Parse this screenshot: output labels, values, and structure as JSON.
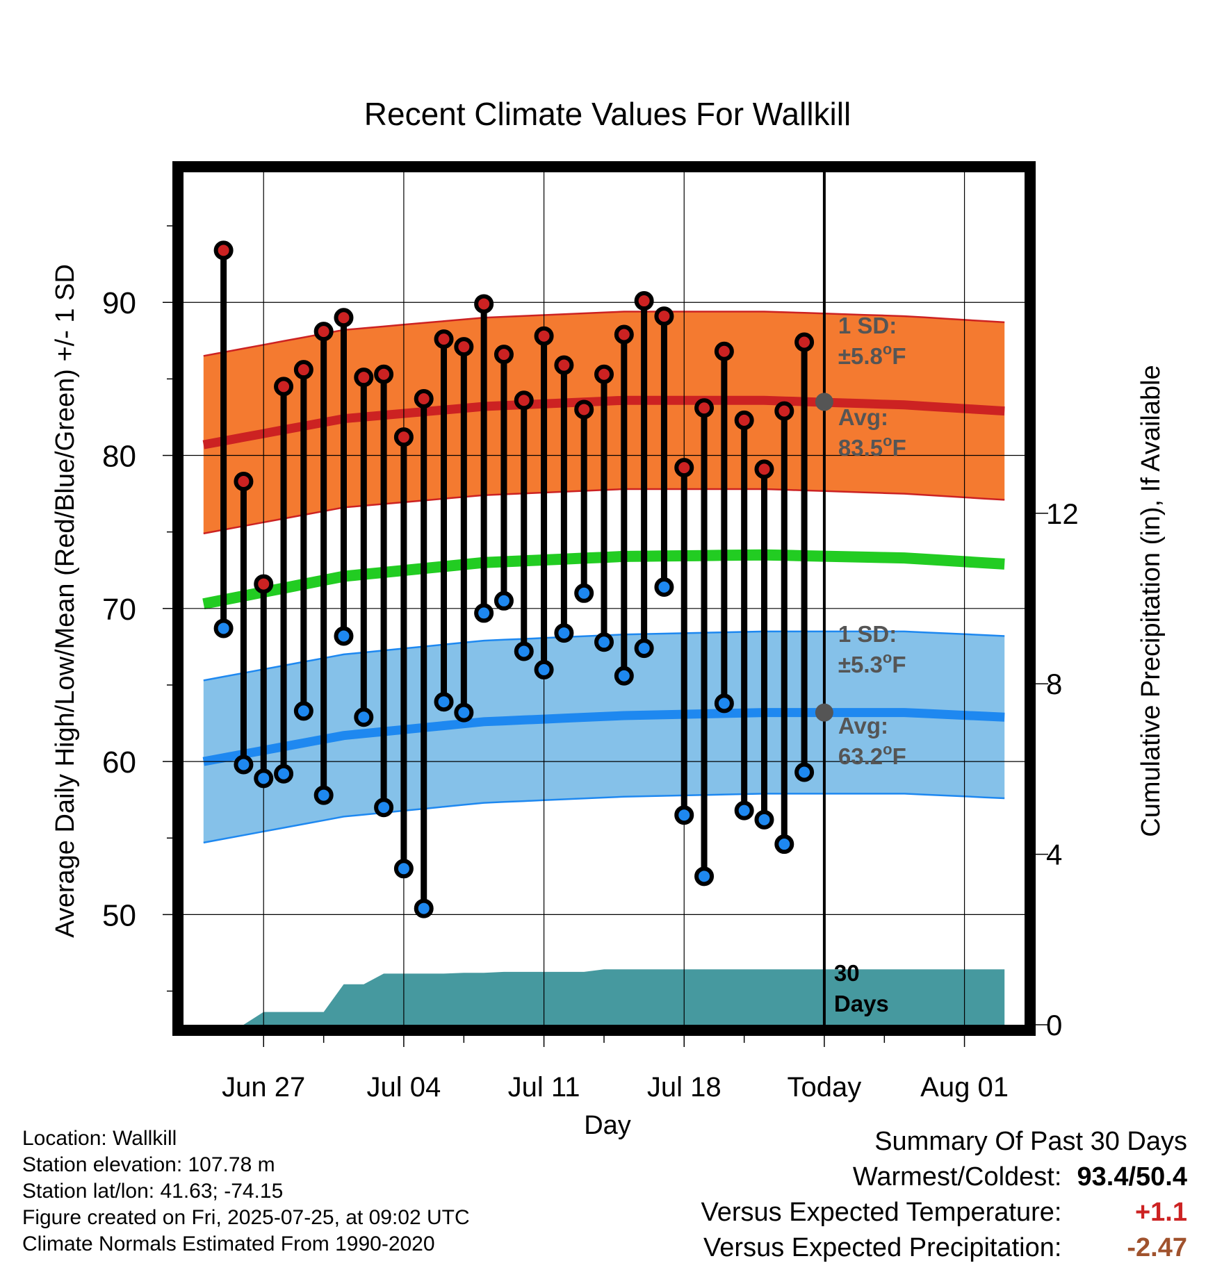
{
  "colors": {
    "high": "#cc2222",
    "high_band": "#f47a30",
    "low": "#1e88f0",
    "low_band": "#85c1e9",
    "mean": "#22cc22",
    "precip": "#46999f",
    "text_gray": "#555555",
    "temp_diff": "#cc2222",
    "precip_diff": "#a0522d"
  },
  "chart_data": {
    "type": "line",
    "title": "Recent Climate Values For Wallkill",
    "xlabel": "Day",
    "ylabel": "Average Daily High/Low/Mean (Red/Blue/Green) +/- 1 SD",
    "y2label": "Cumulative Precipitation (in), If Available",
    "xlim": [
      "2025-06-23",
      "2025-08-04"
    ],
    "ylim": [
      42.8,
      98.5
    ],
    "y2lim": [
      0,
      20
    ],
    "xticks": [
      {
        "date": "2025-06-27",
        "label": "Jun 27"
      },
      {
        "date": "2025-07-04",
        "label": "Jul 04"
      },
      {
        "date": "2025-07-11",
        "label": "Jul 11"
      },
      {
        "date": "2025-07-18",
        "label": "Jul 18"
      },
      {
        "date": "2025-07-25",
        "label": "Today"
      },
      {
        "date": "2025-08-01",
        "label": "Aug 01"
      }
    ],
    "yticks": [
      50,
      60,
      70,
      80,
      90
    ],
    "y2ticks": [
      0,
      4,
      8,
      12
    ],
    "today": "2025-07-25",
    "grid": true,
    "series": [
      {
        "key": "high",
        "dates": [
          "2025-06-25",
          "2025-06-26",
          "2025-06-27",
          "2025-06-28",
          "2025-06-29",
          "2025-06-30",
          "2025-07-01",
          "2025-07-02",
          "2025-07-03",
          "2025-07-04",
          "2025-07-05",
          "2025-07-06",
          "2025-07-07",
          "2025-07-08",
          "2025-07-09",
          "2025-07-10",
          "2025-07-11",
          "2025-07-12",
          "2025-07-13",
          "2025-07-14",
          "2025-07-15",
          "2025-07-16",
          "2025-07-17",
          "2025-07-18",
          "2025-07-19",
          "2025-07-20",
          "2025-07-21",
          "2025-07-22",
          "2025-07-23",
          "2025-07-24"
        ],
        "values": [
          93.4,
          78.3,
          71.6,
          84.5,
          85.6,
          88.1,
          89.0,
          85.1,
          85.3,
          81.2,
          83.7,
          87.6,
          87.1,
          89.9,
          86.6,
          83.6,
          87.8,
          85.9,
          83.0,
          85.3,
          87.9,
          90.1,
          89.1,
          79.2,
          83.1,
          86.8,
          82.3,
          79.1,
          82.9,
          87.4
        ]
      },
      {
        "key": "low",
        "dates": [
          "2025-06-25",
          "2025-06-26",
          "2025-06-27",
          "2025-06-28",
          "2025-06-29",
          "2025-06-30",
          "2025-07-01",
          "2025-07-02",
          "2025-07-03",
          "2025-07-04",
          "2025-07-05",
          "2025-07-06",
          "2025-07-07",
          "2025-07-08",
          "2025-07-09",
          "2025-07-10",
          "2025-07-11",
          "2025-07-12",
          "2025-07-13",
          "2025-07-14",
          "2025-07-15",
          "2025-07-16",
          "2025-07-17",
          "2025-07-18",
          "2025-07-19",
          "2025-07-20",
          "2025-07-21",
          "2025-07-22",
          "2025-07-23",
          "2025-07-24"
        ],
        "values": [
          68.7,
          59.8,
          58.9,
          59.2,
          63.3,
          57.8,
          68.2,
          62.9,
          57.0,
          53.0,
          50.4,
          63.9,
          63.2,
          69.7,
          70.5,
          67.2,
          66.0,
          68.4,
          71.0,
          67.8,
          65.6,
          67.4,
          71.4,
          56.5,
          52.5,
          63.8,
          56.8,
          56.2,
          54.6,
          59.3
        ]
      },
      {
        "key": "normal_high",
        "dates": [
          "2025-06-24",
          "2025-07-01",
          "2025-07-08",
          "2025-07-15",
          "2025-07-22",
          "2025-07-29",
          "2025-08-03"
        ],
        "values": [
          80.7,
          82.4,
          83.2,
          83.6,
          83.6,
          83.3,
          82.9
        ]
      },
      {
        "key": "normal_low",
        "dates": [
          "2025-06-24",
          "2025-07-01",
          "2025-07-08",
          "2025-07-15",
          "2025-07-22",
          "2025-07-29",
          "2025-08-03"
        ],
        "values": [
          60.0,
          61.7,
          62.6,
          63.0,
          63.2,
          63.2,
          62.9
        ]
      },
      {
        "key": "normal_mean",
        "dates": [
          "2025-06-24",
          "2025-07-01",
          "2025-07-08",
          "2025-07-15",
          "2025-07-22",
          "2025-07-29",
          "2025-08-03"
        ],
        "values": [
          70.3,
          72.1,
          73.0,
          73.4,
          73.5,
          73.3,
          72.9
        ]
      },
      {
        "key": "precip_cumulative",
        "dates": [
          "2025-06-24",
          "2025-06-25",
          "2025-06-26",
          "2025-06-27",
          "2025-06-28",
          "2025-06-29",
          "2025-06-30",
          "2025-07-01",
          "2025-07-02",
          "2025-07-03",
          "2025-07-04",
          "2025-07-05",
          "2025-07-06",
          "2025-07-07",
          "2025-07-08",
          "2025-07-09",
          "2025-07-10",
          "2025-07-11",
          "2025-07-12",
          "2025-07-13",
          "2025-07-14",
          "2025-07-15",
          "2025-08-03"
        ],
        "values": [
          0,
          0,
          0,
          0.3,
          0.3,
          0.3,
          0.3,
          0.95,
          0.95,
          1.2,
          1.2,
          1.2,
          1.2,
          1.22,
          1.22,
          1.24,
          1.24,
          1.24,
          1.24,
          1.24,
          1.3,
          1.3,
          1.3
        ]
      }
    ],
    "sd_high": 5.8,
    "sd_low": 5.3,
    "annotations": {
      "high_sd": [
        "1 SD:",
        "±5.8",
        "F"
      ],
      "high_avg": [
        "Avg:",
        "83.5",
        "F"
      ],
      "low_sd": [
        "1 SD:",
        "±5.3",
        "F"
      ],
      "low_avg": [
        "Avg:",
        "63.2",
        "F"
      ],
      "degree": "o",
      "days": [
        "30",
        "Days"
      ],
      "today_high_avg": 83.5,
      "today_low_avg": 63.2
    }
  },
  "footer": {
    "location": "Location: Wallkill",
    "elevation": "Station elevation: 107.78 m",
    "latlon": "Station lat/lon: 41.63; -74.15",
    "created": "Figure created on Fri, 2025-07-25, at 09:02 UTC",
    "normals": "Climate Normals Estimated From 1990-2020"
  },
  "summary": {
    "title": "Summary Of Past 30 Days",
    "warmest_label": "Warmest/Coldest:",
    "warmest_value": "93.4/50.4",
    "temp_label": "Versus Expected Temperature:",
    "temp_value": "+1.1",
    "precip_label": "Versus Expected Precipitation:",
    "precip_value": "-2.47"
  }
}
